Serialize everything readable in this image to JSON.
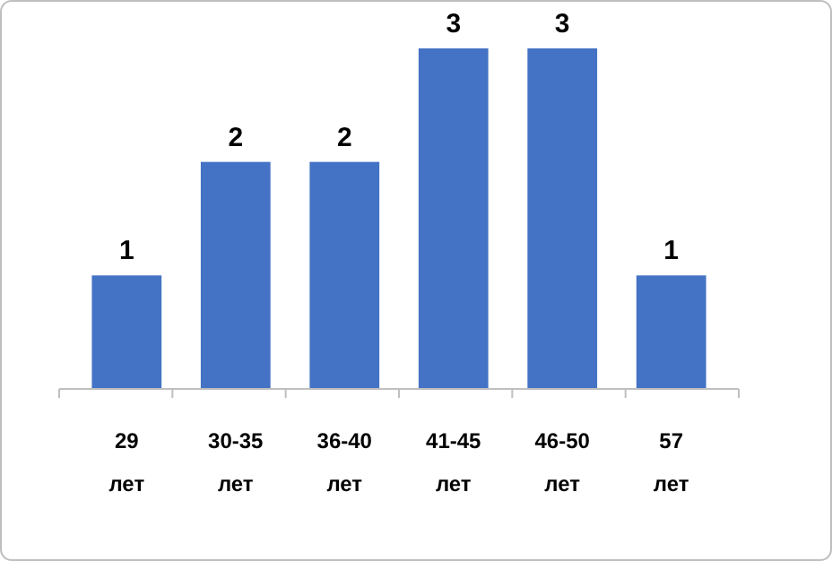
{
  "chart_data": {
    "type": "bar",
    "categories": [
      "29 лет",
      "30-35 лет",
      "36-40 лет",
      "41-45 лет",
      "46-50 лет",
      "57 лет"
    ],
    "values": [
      1,
      2,
      2,
      3,
      3,
      1
    ],
    "color": "#4472c4",
    "data_labels": true,
    "grid": false
  }
}
